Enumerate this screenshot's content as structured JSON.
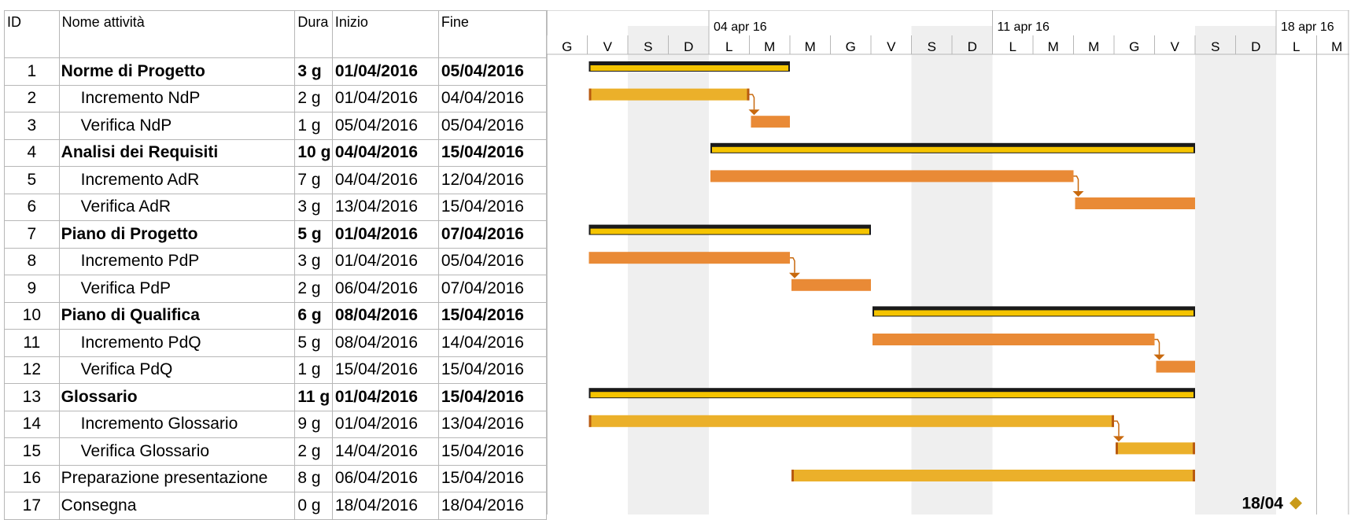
{
  "table": {
    "headers": {
      "id": "ID",
      "name": "Nome attività",
      "duration": "Dura",
      "start": "Inizio",
      "end": "Fine"
    },
    "rows": [
      {
        "id": "1",
        "name": "Norme di Progetto",
        "duration": "3 g",
        "start": "01/04/2016",
        "end": "05/04/2016",
        "summary": true
      },
      {
        "id": "2",
        "name": "Incremento NdP",
        "duration": "2 g",
        "start": "01/04/2016",
        "end": "04/04/2016",
        "summary": false
      },
      {
        "id": "3",
        "name": "Verifica NdP",
        "duration": "1 g",
        "start": "05/04/2016",
        "end": "05/04/2016",
        "summary": false
      },
      {
        "id": "4",
        "name": "Analisi dei Requisiti",
        "duration": "10 g",
        "start": "04/04/2016",
        "end": "15/04/2016",
        "summary": true
      },
      {
        "id": "5",
        "name": "Incremento AdR",
        "duration": "7 g",
        "start": "04/04/2016",
        "end": "12/04/2016",
        "summary": false
      },
      {
        "id": "6",
        "name": "Verifica AdR",
        "duration": "3 g",
        "start": "13/04/2016",
        "end": "15/04/2016",
        "summary": false
      },
      {
        "id": "7",
        "name": "Piano di Progetto",
        "duration": "5 g",
        "start": "01/04/2016",
        "end": "07/04/2016",
        "summary": true
      },
      {
        "id": "8",
        "name": "Incremento PdP",
        "duration": "3 g",
        "start": "01/04/2016",
        "end": "05/04/2016",
        "summary": false
      },
      {
        "id": "9",
        "name": "Verifica PdP",
        "duration": "2 g",
        "start": "06/04/2016",
        "end": "07/04/2016",
        "summary": false
      },
      {
        "id": "10",
        "name": "Piano di Qualifica",
        "duration": "6 g",
        "start": "08/04/2016",
        "end": "15/04/2016",
        "summary": true
      },
      {
        "id": "11",
        "name": "Incremento PdQ",
        "duration": "5 g",
        "start": "08/04/2016",
        "end": "14/04/2016",
        "summary": false
      },
      {
        "id": "12",
        "name": "Verifica PdQ",
        "duration": "1 g",
        "start": "15/04/2016",
        "end": "15/04/2016",
        "summary": false
      },
      {
        "id": "13",
        "name": "Glossario",
        "duration": "11 g",
        "start": "01/04/2016",
        "end": "15/04/2016",
        "summary": true
      },
      {
        "id": "14",
        "name": "Incremento Glossario",
        "duration": "9 g",
        "start": "01/04/2016",
        "end": "13/04/2016",
        "summary": false
      },
      {
        "id": "15",
        "name": "Verifica Glossario",
        "duration": "2 g",
        "start": "14/04/2016",
        "end": "15/04/2016",
        "summary": false
      },
      {
        "id": "16",
        "name": "Preparazione presentazione",
        "duration": "8 g",
        "start": "06/04/2016",
        "end": "15/04/2016",
        "summary": false,
        "top_level": true
      },
      {
        "id": "17",
        "name": "Consegna",
        "duration": "0 g",
        "start": "18/04/2016",
        "end": "18/04/2016",
        "summary": false,
        "top_level": true
      }
    ]
  },
  "timescale": {
    "weeks": [
      "04 apr 16",
      "11 apr 16",
      "18 apr 16"
    ],
    "days": [
      "G",
      "V",
      "S",
      "D",
      "L",
      "M",
      "M",
      "G",
      "V",
      "S",
      "D",
      "L",
      "M",
      "M",
      "G",
      "V",
      "S",
      "D",
      "L",
      "M"
    ]
  },
  "chart_data": {
    "type": "gantt",
    "start_date": "31/03/2016",
    "bars": [
      {
        "row": 1,
        "from": "01/04/2016",
        "to": "05/04/2016",
        "style": "summary"
      },
      {
        "row": 2,
        "from": "01/04/2016",
        "to": "04/04/2016",
        "style": "task-yellow"
      },
      {
        "row": 3,
        "from": "05/04/2016",
        "to": "05/04/2016",
        "style": "task-orange"
      },
      {
        "row": 4,
        "from": "04/04/2016",
        "to": "15/04/2016",
        "style": "summary"
      },
      {
        "row": 5,
        "from": "04/04/2016",
        "to": "12/04/2016",
        "style": "task-orange"
      },
      {
        "row": 6,
        "from": "13/04/2016",
        "to": "15/04/2016",
        "style": "task-orange"
      },
      {
        "row": 7,
        "from": "01/04/2016",
        "to": "07/04/2016",
        "style": "summary"
      },
      {
        "row": 8,
        "from": "01/04/2016",
        "to": "05/04/2016",
        "style": "task-orange"
      },
      {
        "row": 9,
        "from": "06/04/2016",
        "to": "07/04/2016",
        "style": "task-orange"
      },
      {
        "row": 10,
        "from": "08/04/2016",
        "to": "15/04/2016",
        "style": "summary"
      },
      {
        "row": 11,
        "from": "08/04/2016",
        "to": "14/04/2016",
        "style": "task-orange"
      },
      {
        "row": 12,
        "from": "15/04/2016",
        "to": "15/04/2016",
        "style": "task-orange"
      },
      {
        "row": 13,
        "from": "01/04/2016",
        "to": "15/04/2016",
        "style": "summary"
      },
      {
        "row": 14,
        "from": "01/04/2016",
        "to": "13/04/2016",
        "style": "task-yellow"
      },
      {
        "row": 15,
        "from": "14/04/2016",
        "to": "15/04/2016",
        "style": "task-yellow"
      },
      {
        "row": 16,
        "from": "06/04/2016",
        "to": "15/04/2016",
        "style": "task-yellow"
      }
    ],
    "dependencies": [
      [
        2,
        3
      ],
      [
        5,
        6
      ],
      [
        8,
        9
      ],
      [
        11,
        12
      ],
      [
        14,
        15
      ]
    ],
    "milestone": {
      "row": 17,
      "date": "18/04/2016",
      "label": "18/04"
    }
  },
  "colors": {
    "summary_outline": "#1a1a1a",
    "summary_fill": "#f5c400",
    "task_yellow": "#ebb02a",
    "task_orange": "#e98a36",
    "task_end": "#b85a10",
    "arrow": "#c8690e",
    "weekend": "#efefef",
    "milestone": "#c99a1a",
    "grid": "#b7b7b7"
  }
}
